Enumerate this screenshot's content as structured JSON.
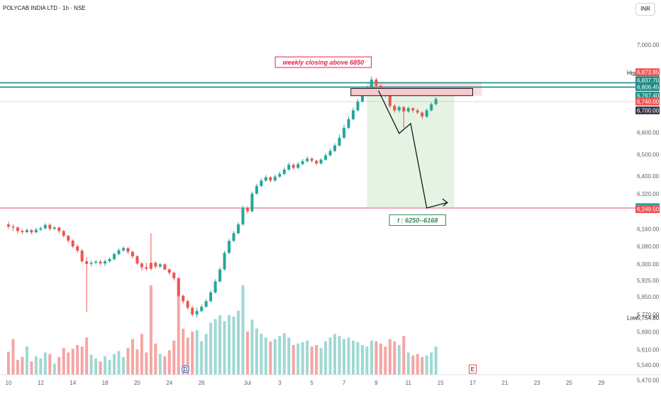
{
  "header": {
    "symbol": "POLYCAB INDIA LTD · 1h · NSE",
    "currency": "INR"
  },
  "colors": {
    "up": "#26a69a",
    "down": "#ef5350",
    "vol_up": "#9fd9d3",
    "vol_down": "#f5a5a4",
    "level_line": "#1f8c86",
    "target_line": "#e27397",
    "stop_zone": "#f8b6ba",
    "target_zone": "#e5f4e2",
    "arrow": "#131722"
  },
  "chart_data": {
    "type": "candlestick",
    "y_axis": {
      "range": [
        5440,
        7050
      ],
      "ticks": [
        {
          "v": 7000,
          "l": "7,000.00"
        },
        {
          "v": 6600,
          "l": "6,600.00"
        },
        {
          "v": 6500,
          "l": "6,500.00"
        },
        {
          "v": 6400,
          "l": "6,400.00"
        },
        {
          "v": 6320,
          "l": "6,320.00"
        },
        {
          "v": 6160,
          "l": "6,160.00"
        },
        {
          "v": 6080,
          "l": "6,080.00"
        },
        {
          "v": 6000,
          "l": "6,000.00"
        },
        {
          "v": 5925,
          "l": "5,925.00"
        },
        {
          "v": 5850,
          "l": "5,850.00"
        },
        {
          "v": 5770,
          "l": "5,770.00"
        },
        {
          "v": 5690,
          "l": "5,690.00"
        },
        {
          "v": 5610,
          "l": "5,610.00"
        },
        {
          "v": 5540,
          "l": "5,540.00"
        },
        {
          "v": 5470,
          "l": "5,470.00"
        }
      ]
    },
    "x_axis": {
      "ticks": [
        {
          "i": 0,
          "l": "10"
        },
        {
          "i": 7,
          "l": "12"
        },
        {
          "i": 14,
          "l": "14"
        },
        {
          "i": 21,
          "l": "18"
        },
        {
          "i": 28,
          "l": "20"
        },
        {
          "i": 35,
          "l": "24"
        },
        {
          "i": 42,
          "l": "26"
        },
        {
          "i": 52,
          "l": "Jul"
        },
        {
          "i": 59,
          "l": "3"
        },
        {
          "i": 66,
          "l": "5"
        },
        {
          "i": 73,
          "l": "7"
        },
        {
          "i": 80,
          "l": "9"
        },
        {
          "i": 87,
          "l": "11"
        },
        {
          "i": 94,
          "l": "15"
        },
        {
          "i": 101,
          "l": "17"
        },
        {
          "i": 108,
          "l": "21"
        },
        {
          "i": 115,
          "l": "23"
        },
        {
          "i": 122,
          "l": "25"
        },
        {
          "i": 129,
          "l": "29"
        }
      ]
    },
    "price_badges": [
      {
        "v": 6873.95,
        "l": "6,873.95",
        "color": "#ef5350"
      },
      {
        "v": 6837.7,
        "l": "6,837.70",
        "color": "#1f8c86"
      },
      {
        "v": 6806.45,
        "l": "6,806.45",
        "color": "#1f8c86"
      },
      {
        "v": 6767.4,
        "l": "6,767.40",
        "color": "#1f8c86"
      },
      {
        "v": 6740.0,
        "l": "6,740.00",
        "color": "#ef5350"
      },
      {
        "v": 6700.0,
        "l": "6,700.00",
        "color": "#363a45"
      },
      {
        "v": 6258.8,
        "l": "6,258.80",
        "color": "#26a69a"
      },
      {
        "v": 6249.5,
        "l": "6,249.50",
        "color": "#ef5350"
      }
    ],
    "plain_labels": [
      {
        "v": 6871.0,
        "l": "6,871.00",
        "tag": "High"
      },
      {
        "v": 5754.8,
        "l": "5,754.80",
        "tag": "Low"
      }
    ],
    "horizontal_lines": [
      {
        "v": 6826,
        "kind": "level"
      },
      {
        "v": 6806,
        "kind": "level"
      },
      {
        "v": 6740,
        "kind": "thin"
      },
      {
        "v": 6255,
        "kind": "target"
      }
    ],
    "zones": {
      "stop": {
        "x0": 78,
        "x1": 103,
        "y0": 6767,
        "y1": 6830
      },
      "target": {
        "x0": 78,
        "x1": 97,
        "y0": 6258,
        "y1": 6767
      },
      "resistance_box": {
        "x0": 74.5,
        "x1": 101,
        "y0": 6767,
        "y1": 6800
      }
    },
    "projection_path": [
      {
        "i": 80.5,
        "v": 6790
      },
      {
        "i": 85,
        "v": 6595
      },
      {
        "i": 87.5,
        "v": 6640
      },
      {
        "i": 91,
        "v": 6255
      },
      {
        "i": 95.5,
        "v": 6280
      }
    ],
    "annotations": [
      {
        "text": "weekly closing above 6850",
        "i": 68.5,
        "v": 6918,
        "color": "#e2264e"
      },
      {
        "text": "t : 6250--6168",
        "i": 89,
        "v": 6198,
        "color": "#2e8b57"
      }
    ],
    "earnings_marks": [
      {
        "i": 38.5,
        "l": "D"
      },
      {
        "i": 101,
        "l": "E"
      }
    ],
    "candles": [
      [
        6180,
        6170,
        6192,
        6160,
        31,
        0
      ],
      [
        6170,
        6166,
        6180,
        6150,
        48,
        0
      ],
      [
        6166,
        6150,
        6172,
        6140,
        20,
        0
      ],
      [
        6150,
        6145,
        6158,
        6135,
        24,
        0
      ],
      [
        6145,
        6154,
        6162,
        6140,
        38,
        1
      ],
      [
        6154,
        6144,
        6160,
        6135,
        18,
        0
      ],
      [
        6144,
        6156,
        6164,
        6140,
        25,
        1
      ],
      [
        6156,
        6162,
        6170,
        6150,
        22,
        1
      ],
      [
        6162,
        6178,
        6185,
        6158,
        30,
        1
      ],
      [
        6178,
        6160,
        6185,
        6152,
        28,
        0
      ],
      [
        6160,
        6166,
        6172,
        6155,
        15,
        1
      ],
      [
        6166,
        6150,
        6170,
        6140,
        24,
        0
      ],
      [
        6150,
        6128,
        6155,
        6120,
        36,
        0
      ],
      [
        6128,
        6106,
        6132,
        6098,
        30,
        0
      ],
      [
        6106,
        6080,
        6112,
        6072,
        35,
        0
      ],
      [
        6080,
        6060,
        6088,
        6050,
        40,
        0
      ],
      [
        6060,
        6012,
        6068,
        6005,
        38,
        0
      ],
      [
        6012,
        6000,
        6030,
        5780,
        50,
        0
      ],
      [
        6000,
        6005,
        6015,
        5990,
        27,
        1
      ],
      [
        6005,
        6010,
        6018,
        5998,
        22,
        1
      ],
      [
        6010,
        6002,
        6020,
        5995,
        18,
        0
      ],
      [
        6002,
        6012,
        6020,
        5990,
        25,
        1
      ],
      [
        6012,
        6022,
        6030,
        6005,
        20,
        1
      ],
      [
        6022,
        6045,
        6052,
        6015,
        28,
        1
      ],
      [
        6045,
        6062,
        6070,
        6040,
        32,
        1
      ],
      [
        6062,
        6072,
        6080,
        6055,
        24,
        1
      ],
      [
        6072,
        6055,
        6076,
        6045,
        36,
        0
      ],
      [
        6055,
        6035,
        6060,
        6025,
        48,
        0
      ],
      [
        6035,
        6002,
        6040,
        5995,
        34,
        0
      ],
      [
        6002,
        5985,
        6008,
        5970,
        55,
        0
      ],
      [
        5985,
        5978,
        6005,
        5970,
        30,
        0
      ],
      [
        5978,
        6005,
        6140,
        5970,
        120,
        0
      ],
      [
        6005,
        5988,
        6012,
        5980,
        42,
        0
      ],
      [
        5988,
        5998,
        6005,
        5982,
        28,
        1
      ],
      [
        5998,
        5975,
        6002,
        5970,
        25,
        0
      ],
      [
        5975,
        5960,
        5980,
        5950,
        33,
        0
      ],
      [
        5960,
        5935,
        5965,
        5925,
        46,
        0
      ],
      [
        5935,
        5855,
        5940,
        5850,
        120,
        0
      ],
      [
        5855,
        5830,
        5860,
        5820,
        62,
        0
      ],
      [
        5830,
        5800,
        5838,
        5790,
        50,
        0
      ],
      [
        5800,
        5770,
        5808,
        5760,
        58,
        0
      ],
      [
        5770,
        5785,
        5800,
        5755,
        60,
        1
      ],
      [
        5785,
        5805,
        5815,
        5780,
        45,
        1
      ],
      [
        5805,
        5830,
        5840,
        5800,
        55,
        1
      ],
      [
        5830,
        5870,
        5880,
        5825,
        70,
        1
      ],
      [
        5870,
        5920,
        5930,
        5865,
        75,
        1
      ],
      [
        5920,
        5975,
        5985,
        5915,
        80,
        1
      ],
      [
        5975,
        6050,
        6060,
        5970,
        72,
        1
      ],
      [
        6050,
        6105,
        6115,
        6045,
        80,
        1
      ],
      [
        6105,
        6140,
        6150,
        6100,
        78,
        1
      ],
      [
        6140,
        6180,
        6190,
        6135,
        86,
        1
      ],
      [
        6180,
        6255,
        6265,
        6175,
        120,
        1
      ],
      [
        6255,
        6240,
        6262,
        6230,
        58,
        0
      ],
      [
        6240,
        6320,
        6330,
        6235,
        74,
        1
      ],
      [
        6320,
        6355,
        6365,
        6315,
        62,
        1
      ],
      [
        6355,
        6380,
        6390,
        6350,
        55,
        1
      ],
      [
        6380,
        6395,
        6405,
        6375,
        50,
        1
      ],
      [
        6395,
        6380,
        6400,
        6372,
        45,
        0
      ],
      [
        6380,
        6398,
        6408,
        6375,
        48,
        1
      ],
      [
        6398,
        6410,
        6420,
        6392,
        52,
        1
      ],
      [
        6410,
        6430,
        6440,
        6405,
        56,
        1
      ],
      [
        6430,
        6452,
        6462,
        6425,
        50,
        1
      ],
      [
        6452,
        6438,
        6458,
        6430,
        40,
        0
      ],
      [
        6438,
        6455,
        6465,
        6432,
        42,
        1
      ],
      [
        6455,
        6468,
        6478,
        6450,
        44,
        1
      ],
      [
        6468,
        6480,
        6490,
        6462,
        46,
        1
      ],
      [
        6480,
        6470,
        6486,
        6462,
        38,
        0
      ],
      [
        6470,
        6458,
        6475,
        6450,
        40,
        0
      ],
      [
        6458,
        6475,
        6482,
        6452,
        36,
        1
      ],
      [
        6475,
        6495,
        6505,
        6470,
        45,
        1
      ],
      [
        6495,
        6515,
        6525,
        6490,
        50,
        1
      ],
      [
        6515,
        6540,
        6550,
        6510,
        55,
        1
      ],
      [
        6540,
        6575,
        6590,
        6535,
        52,
        1
      ],
      [
        6575,
        6620,
        6635,
        6570,
        48,
        1
      ],
      [
        6620,
        6660,
        6672,
        6615,
        50,
        1
      ],
      [
        6660,
        6700,
        6712,
        6655,
        46,
        1
      ],
      [
        6700,
        6740,
        6752,
        6695,
        44,
        1
      ],
      [
        6740,
        6770,
        6782,
        6735,
        40,
        1
      ],
      [
        6770,
        6800,
        6812,
        6765,
        38,
        1
      ],
      [
        6800,
        6840,
        6855,
        6795,
        46,
        1
      ],
      [
        6840,
        6812,
        6848,
        6800,
        45,
        0
      ],
      [
        6812,
        6790,
        6820,
        6780,
        42,
        0
      ],
      [
        6790,
        6770,
        6798,
        6760,
        38,
        0
      ],
      [
        6770,
        6720,
        6775,
        6710,
        48,
        0
      ],
      [
        6720,
        6700,
        6728,
        6690,
        45,
        0
      ],
      [
        6700,
        6715,
        6722,
        6690,
        40,
        1
      ],
      [
        6715,
        6695,
        6720,
        6620,
        52,
        0
      ],
      [
        6695,
        6710,
        6718,
        6688,
        30,
        1
      ],
      [
        6710,
        6700,
        6715,
        6690,
        26,
        0
      ],
      [
        6700,
        6690,
        6708,
        6682,
        28,
        0
      ],
      [
        6690,
        6672,
        6696,
        6660,
        24,
        0
      ],
      [
        6672,
        6700,
        6708,
        6665,
        26,
        1
      ],
      [
        6700,
        6728,
        6736,
        6695,
        30,
        1
      ],
      [
        6728,
        6752,
        6760,
        6722,
        38,
        1
      ]
    ]
  }
}
